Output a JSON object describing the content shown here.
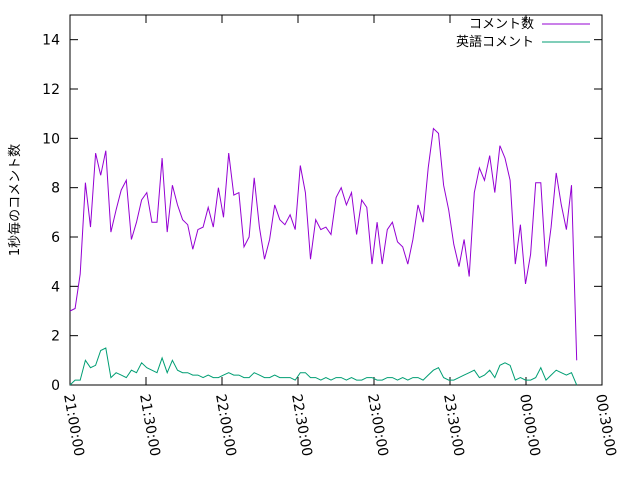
{
  "chart_data": {
    "type": "line",
    "title": "",
    "xlabel": "",
    "ylabel": "1秒毎のコメント数",
    "ylim": [
      0,
      15
    ],
    "y_ticks": [
      0,
      2,
      4,
      6,
      8,
      10,
      12,
      14
    ],
    "x_range": [
      "21:00:00",
      "00:30:00"
    ],
    "x_ticks": [
      "21:00:00",
      "21:30:00",
      "22:00:00",
      "22:30:00",
      "23:00:00",
      "23:30:00",
      "00:00:00",
      "00:30:00"
    ],
    "x_minutes_per_tick": 30,
    "legend_position": "top-right",
    "grid": false,
    "series": [
      {
        "name": "コメント数",
        "color": "#9400d3",
        "values": [
          3.0,
          3.1,
          4.5,
          8.2,
          6.4,
          9.4,
          8.5,
          9.5,
          6.2,
          7.1,
          7.9,
          8.3,
          5.9,
          6.6,
          7.5,
          7.8,
          6.6,
          6.6,
          9.2,
          6.2,
          8.1,
          7.3,
          6.7,
          6.5,
          5.5,
          6.3,
          6.4,
          7.2,
          6.4,
          8.0,
          6.8,
          9.4,
          7.7,
          7.8,
          5.6,
          6.0,
          8.4,
          6.4,
          5.1,
          5.9,
          7.3,
          6.7,
          6.5,
          6.9,
          6.3,
          8.9,
          7.8,
          5.1,
          6.7,
          6.3,
          6.4,
          6.1,
          7.6,
          8.0,
          7.3,
          7.8,
          6.1,
          7.5,
          7.2,
          4.9,
          6.6,
          4.9,
          6.3,
          6.6,
          5.8,
          5.6,
          4.9,
          5.9,
          7.3,
          6.6,
          8.8,
          10.4,
          10.2,
          8.1,
          7.1,
          5.7,
          4.8,
          5.9,
          4.4,
          7.8,
          8.8,
          8.3,
          9.3,
          7.8,
          9.7,
          9.2,
          8.3,
          4.9,
          6.5,
          4.1,
          5.3,
          8.2,
          8.2,
          4.8,
          6.4,
          8.6,
          7.3,
          6.3,
          8.1,
          1.0
        ]
      },
      {
        "name": "英語コメント",
        "color": "#009e73",
        "values": [
          0.0,
          0.2,
          0.2,
          1.0,
          0.7,
          0.8,
          1.4,
          1.5,
          0.3,
          0.5,
          0.4,
          0.3,
          0.6,
          0.5,
          0.9,
          0.7,
          0.6,
          0.5,
          1.1,
          0.5,
          1.0,
          0.6,
          0.5,
          0.5,
          0.4,
          0.4,
          0.3,
          0.4,
          0.3,
          0.3,
          0.4,
          0.5,
          0.4,
          0.4,
          0.3,
          0.3,
          0.5,
          0.4,
          0.3,
          0.3,
          0.4,
          0.3,
          0.3,
          0.3,
          0.2,
          0.5,
          0.5,
          0.3,
          0.3,
          0.2,
          0.3,
          0.2,
          0.3,
          0.3,
          0.2,
          0.3,
          0.2,
          0.2,
          0.3,
          0.3,
          0.2,
          0.2,
          0.3,
          0.3,
          0.2,
          0.3,
          0.2,
          0.3,
          0.3,
          0.2,
          0.4,
          0.6,
          0.7,
          0.3,
          0.2,
          0.2,
          0.3,
          0.4,
          0.5,
          0.6,
          0.3,
          0.4,
          0.6,
          0.3,
          0.8,
          0.9,
          0.8,
          0.2,
          0.3,
          0.2,
          0.2,
          0.3,
          0.7,
          0.2,
          0.4,
          0.6,
          0.5,
          0.4,
          0.5,
          0.0
        ]
      }
    ],
    "series_x_start": "21:00:00",
    "series_x_end": "00:20:00"
  }
}
